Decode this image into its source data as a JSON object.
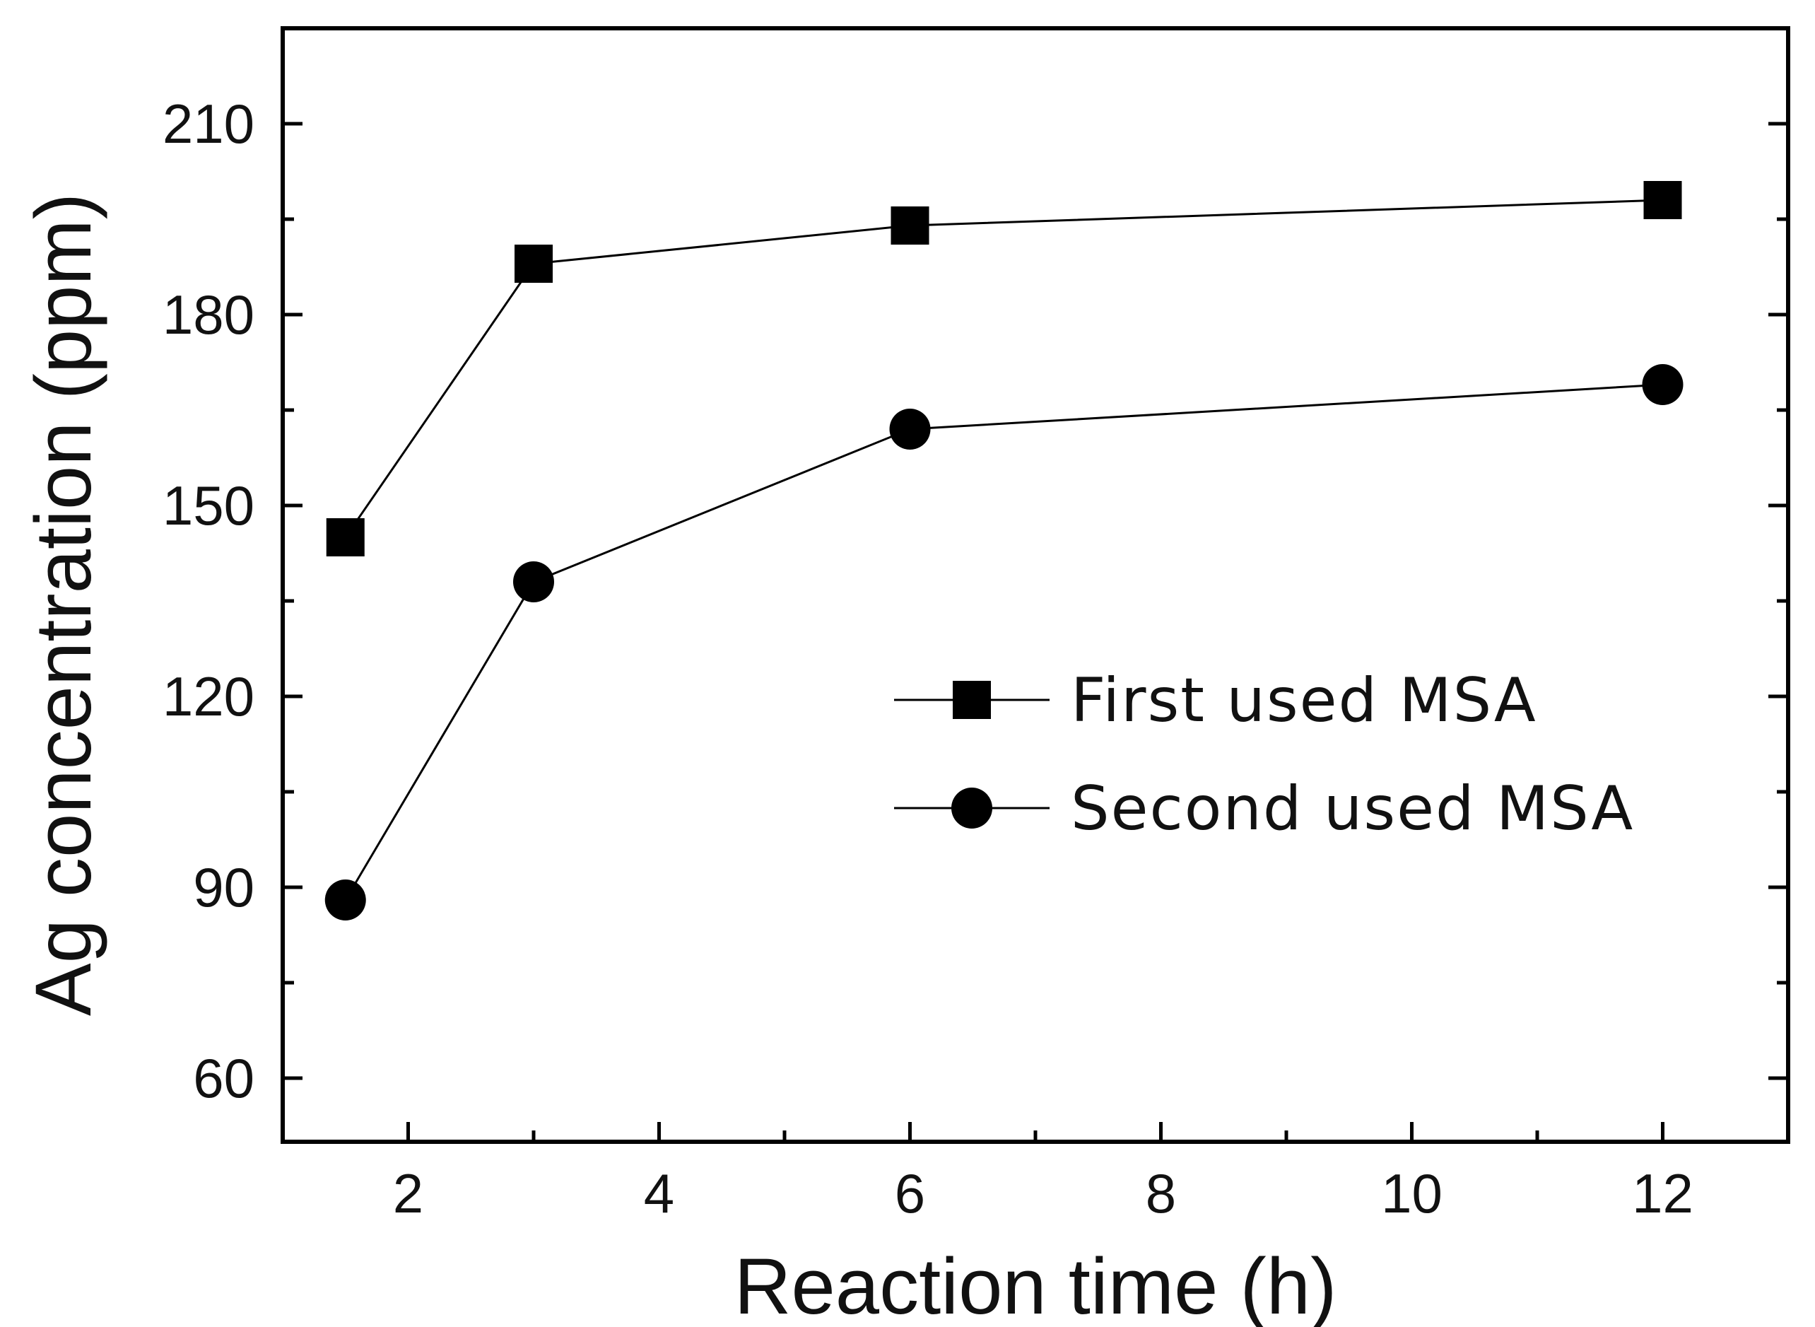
{
  "chart_data": {
    "type": "line",
    "title": "",
    "xlabel": "Reaction time (h)",
    "ylabel": "Ag concentration (ppm)",
    "xlim": [
      1,
      13
    ],
    "ylim": [
      50,
      225
    ],
    "x_ticks": [
      2,
      4,
      6,
      8,
      10,
      12
    ],
    "x_tick_labels": [
      "2",
      "4",
      "6",
      "8",
      "10",
      "12"
    ],
    "y_ticks": [
      60,
      90,
      120,
      150,
      180,
      210
    ],
    "y_tick_labels": [
      "60",
      "90",
      "120",
      "150",
      "180",
      "210"
    ],
    "grid": false,
    "legend_position": "center-right",
    "series": [
      {
        "name": "First used MSA",
        "marker": "square",
        "color": "#000000",
        "x": [
          1.5,
          3,
          6,
          12
        ],
        "y": [
          145,
          188,
          194,
          198
        ]
      },
      {
        "name": "Second used MSA",
        "marker": "circle",
        "color": "#000000",
        "x": [
          1.5,
          3,
          6,
          12
        ],
        "y": [
          88,
          138,
          162,
          169
        ]
      }
    ]
  }
}
